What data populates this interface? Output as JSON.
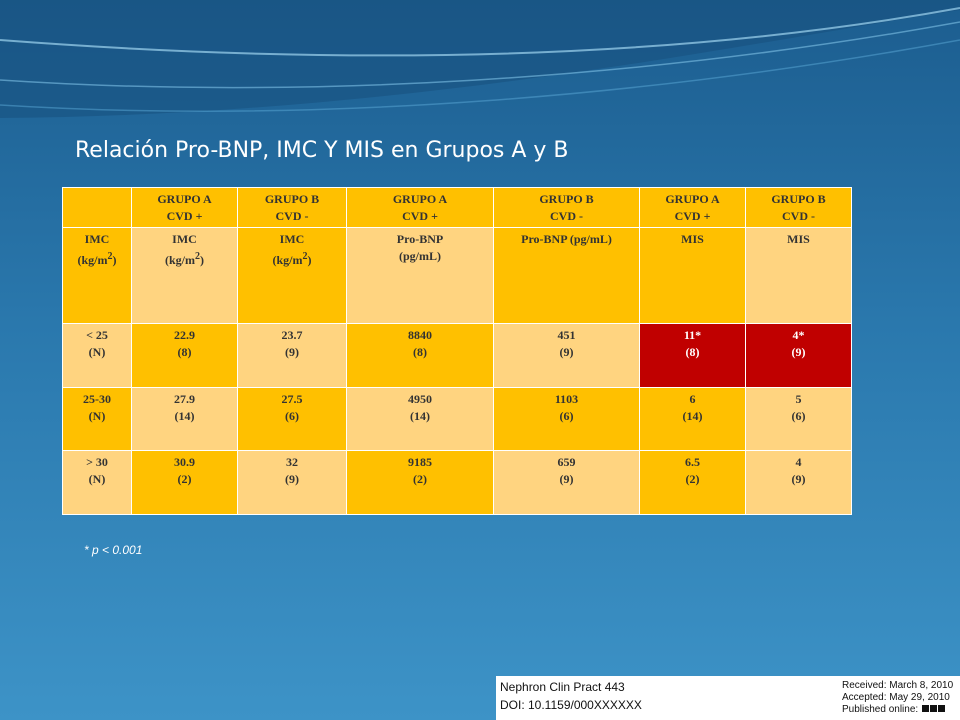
{
  "slide": {
    "title": "Relación Pro-BNP, IMC Y MIS en Grupos A y B",
    "footnote": "* p < 0.001"
  },
  "table": {
    "header": [
      [
        "",
        ""
      ],
      [
        "GRUPO A",
        "CVD +"
      ],
      [
        "GRUPO B",
        "CVD -"
      ],
      [
        "GRUPO A",
        "CVD +"
      ],
      [
        "GRUPO B",
        "CVD -"
      ],
      [
        "GRUPO A",
        "CVD +"
      ],
      [
        "GRUPO B",
        "CVD -"
      ]
    ],
    "labels": [
      [
        "IMC",
        "(kg/m",
        "2",
        ")"
      ],
      [
        "IMC",
        "(kg/m",
        "2",
        ")"
      ],
      [
        "IMC",
        "(kg/m",
        "2",
        ")"
      ],
      [
        "Pro-BNP",
        "(pg/mL)"
      ],
      [
        "Pro-BNP (pg/mL)"
      ],
      [
        "MIS"
      ],
      [
        "MIS"
      ]
    ],
    "rows": [
      [
        [
          "< 25",
          "(N)"
        ],
        [
          "22.9",
          "(8)"
        ],
        [
          "23.7",
          "(9)"
        ],
        [
          "8840",
          "(8)"
        ],
        [
          "451",
          "(9)"
        ],
        [
          "11*",
          "(8)"
        ],
        [
          "4*",
          "(9)"
        ]
      ],
      [
        [
          "25-30",
          "(N)"
        ],
        [
          "27.9",
          "(14)"
        ],
        [
          "27.5",
          "(6)"
        ],
        [
          "4950",
          "(14)"
        ],
        [
          "1103",
          "(6)"
        ],
        [
          "6",
          "(14)"
        ],
        [
          "5",
          "(6)"
        ]
      ],
      [
        [
          "> 30",
          "(N)"
        ],
        [
          "30.9",
          "(2)"
        ],
        [
          "32",
          "(9)"
        ],
        [
          "9185",
          "(2)"
        ],
        [
          "659",
          "(9)"
        ],
        [
          "6.5",
          "(2)"
        ],
        [
          "4",
          "(9)"
        ]
      ]
    ],
    "highlight_color": "#c00000"
  },
  "citation": {
    "journal": "Nephron Clin Pract 443",
    "doi": "DOI: 10.1159/000XXXXXX",
    "received": "Received: March 8, 2010",
    "accepted": "Accepted: May 29, 2010",
    "published": "Published online:"
  }
}
